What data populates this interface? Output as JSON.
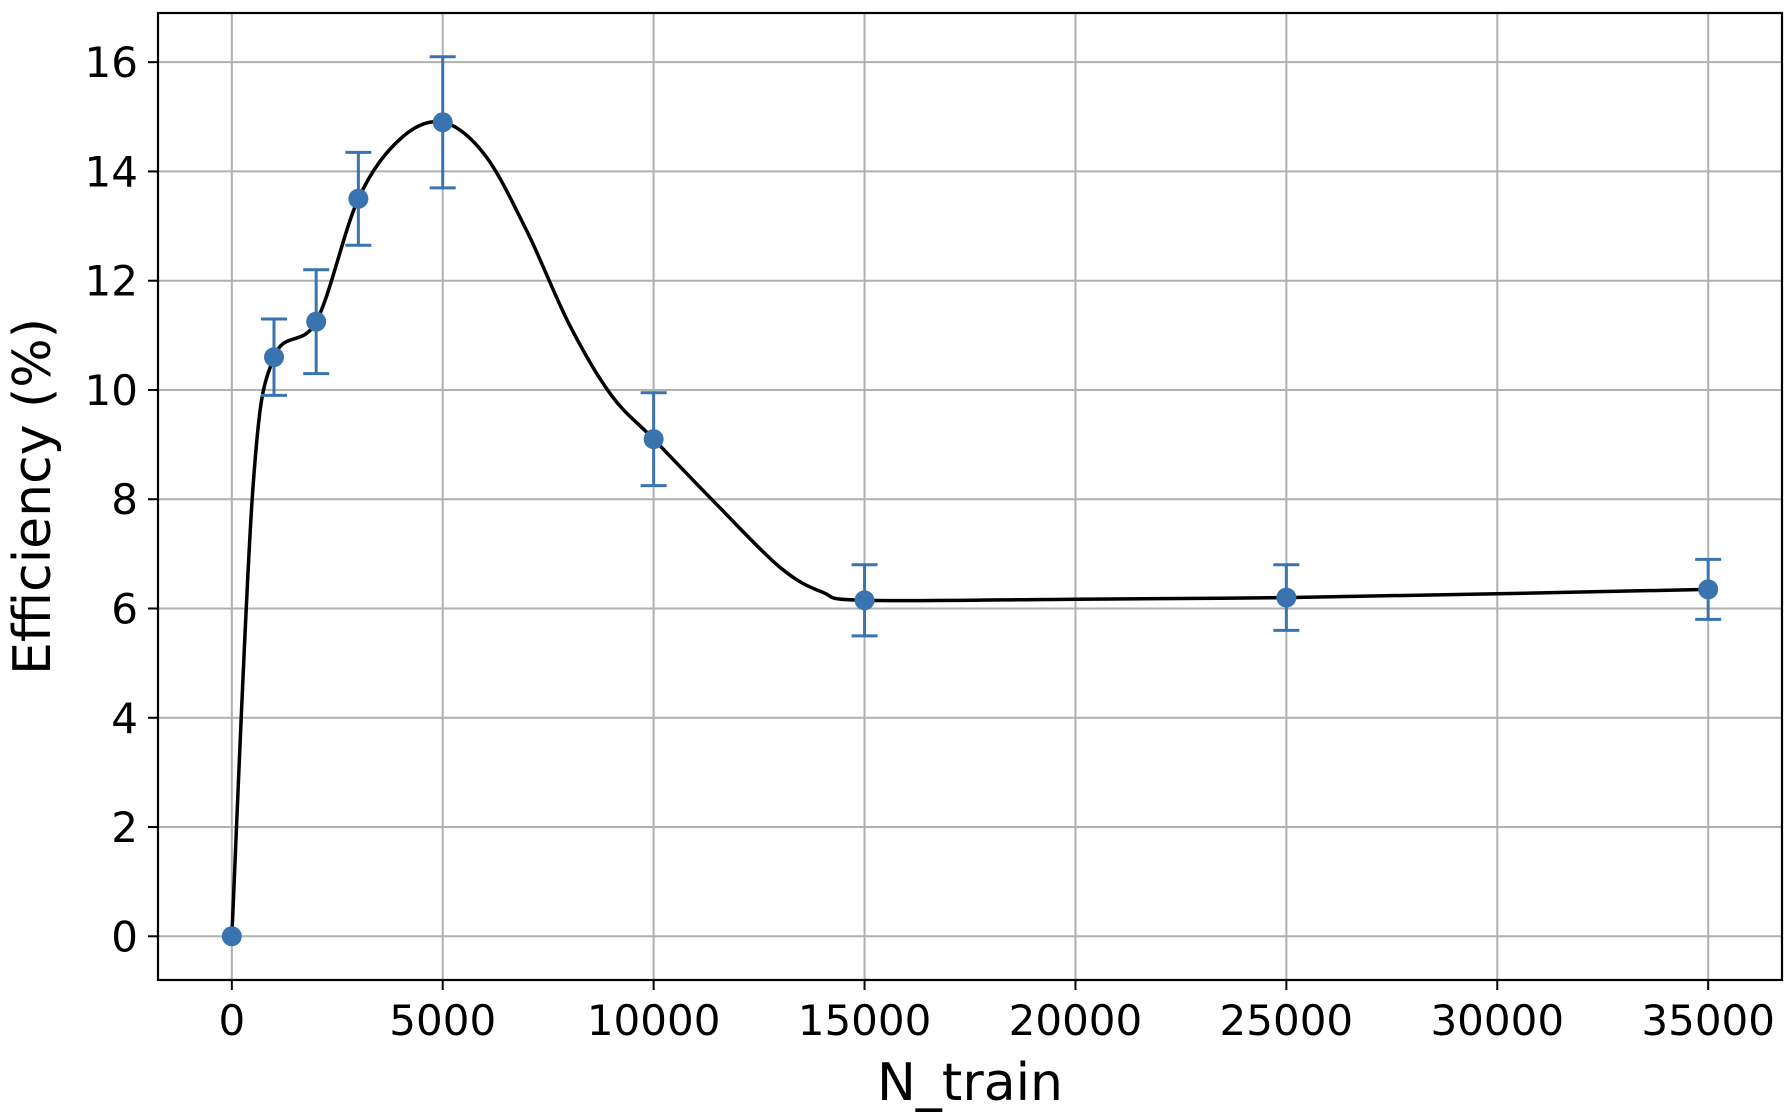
{
  "chart_data": {
    "type": "line",
    "title": "",
    "xlabel": "N_train",
    "ylabel": "Efficiency (%)",
    "xlim": [
      -1750,
      36750
    ],
    "ylim": [
      -0.8,
      16.9
    ],
    "xticks": [
      0,
      5000,
      10000,
      15000,
      20000,
      25000,
      30000,
      35000
    ],
    "yticks": [
      0,
      2,
      4,
      6,
      8,
      10,
      12,
      14,
      16
    ],
    "grid": true,
    "legend": "none",
    "series": [
      {
        "x": [
          0,
          1000,
          2000,
          3000,
          5000,
          10000,
          15000,
          25000,
          35000
        ],
        "y": [
          0.0,
          10.6,
          11.25,
          13.5,
          14.9,
          9.1,
          6.15,
          6.2,
          6.35
        ],
        "yerr_low": [
          0.0,
          0.7,
          0.95,
          0.85,
          1.2,
          0.85,
          0.65,
          0.6,
          0.55
        ],
        "yerr_high": [
          0.0,
          0.7,
          0.95,
          0.85,
          1.2,
          0.85,
          0.65,
          0.6,
          0.55
        ],
        "marker_color": "#3a74b0"
      }
    ],
    "fit_curve": {
      "color": "#000000",
      "x": [
        0,
        500,
        1000,
        2000,
        3000,
        4000,
        5000,
        6000,
        7000,
        8000,
        9000,
        10000,
        11500,
        13000,
        14000,
        15000,
        20000,
        25000,
        30000,
        35000
      ],
      "y": [
        0.0,
        8.2,
        10.6,
        11.25,
        13.5,
        14.6,
        14.9,
        14.3,
        12.9,
        11.2,
        9.9,
        9.1,
        7.9,
        6.75,
        6.3,
        6.15,
        6.17,
        6.2,
        6.27,
        6.35
      ]
    }
  }
}
